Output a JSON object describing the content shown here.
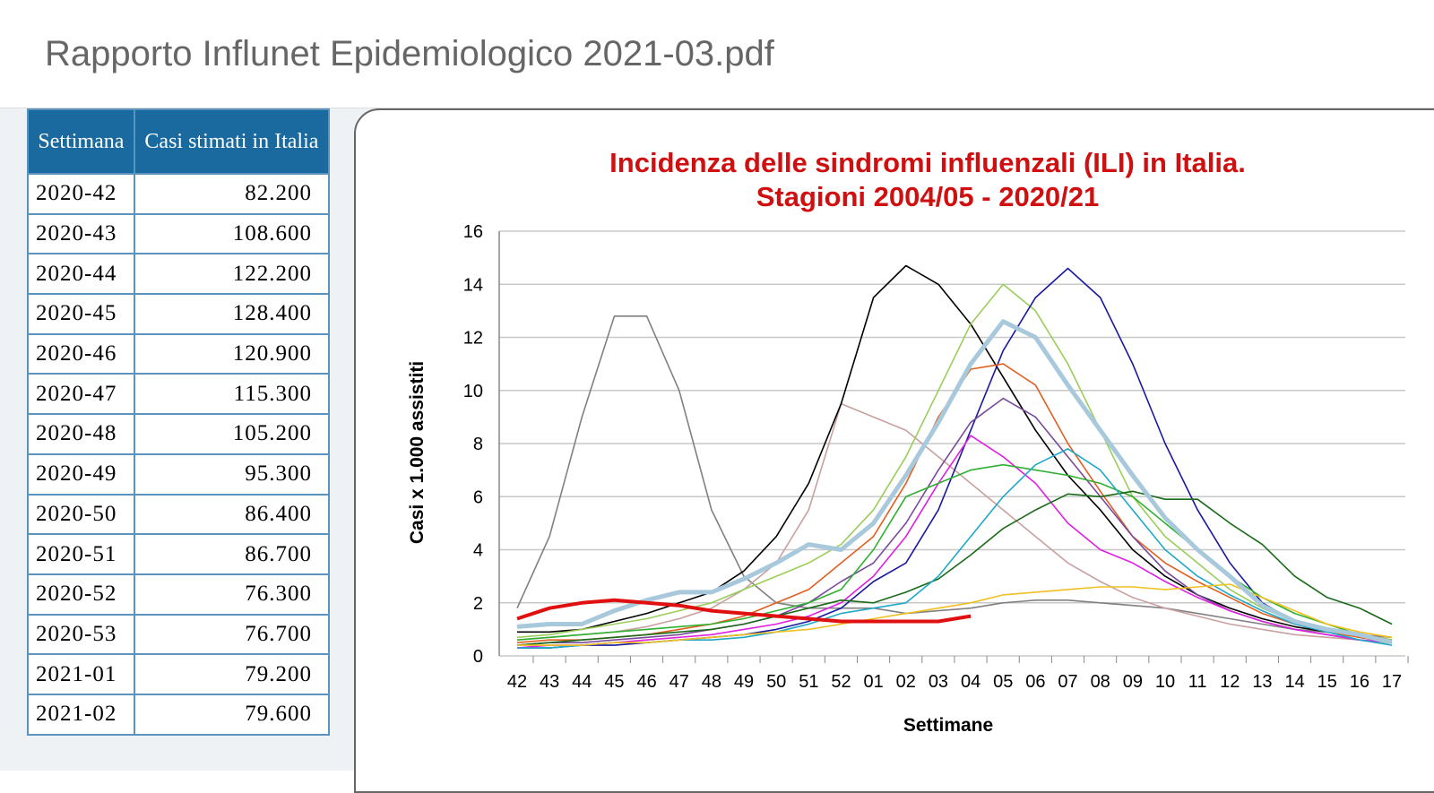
{
  "header": {
    "title": "Rapporto Influnet Epidemiologico 2021-03.pdf"
  },
  "table": {
    "columns": [
      "Settimana",
      "Casi stimati in Italia"
    ],
    "rows": [
      [
        "2020-42",
        "82.200"
      ],
      [
        "2020-43",
        "108.600"
      ],
      [
        "2020-44",
        "122.200"
      ],
      [
        "2020-45",
        "128.400"
      ],
      [
        "2020-46",
        "120.900"
      ],
      [
        "2020-47",
        "115.300"
      ],
      [
        "2020-48",
        "105.200"
      ],
      [
        "2020-49",
        "95.300"
      ],
      [
        "2020-50",
        "86.400"
      ],
      [
        "2020-51",
        "86.700"
      ],
      [
        "2020-52",
        "76.300"
      ],
      [
        "2020-53",
        "76.700"
      ],
      [
        "2021-01",
        "79.200"
      ],
      [
        "2021-02",
        "79.600"
      ]
    ]
  },
  "chart_data": {
    "type": "line",
    "title": "Incidenza delle sindromi influenzali (ILI) in Italia.",
    "subtitle": "Stagioni 2004/05 - 2020/21",
    "y_label": "Casi x 1.000 assistiti",
    "x_label": "Settimane",
    "categories": [
      "42",
      "43",
      "44",
      "45",
      "46",
      "47",
      "48",
      "49",
      "50",
      "51",
      "52",
      "01",
      "02",
      "03",
      "04",
      "05",
      "06",
      "07",
      "08",
      "09",
      "10",
      "11",
      "12",
      "13",
      "14",
      "15",
      "16",
      "17"
    ],
    "ylim": [
      0,
      16
    ],
    "yticks": [
      0,
      2,
      4,
      6,
      8,
      10,
      12,
      14,
      16
    ],
    "grid": true,
    "series": [
      {
        "color": "#808080",
        "values": [
          1.8,
          4.5,
          9,
          12.8,
          12.8,
          10,
          5.5,
          3,
          2,
          1.8,
          1.8,
          1.8,
          1.6,
          1.7,
          1.8,
          2,
          2.1,
          2.1,
          2.0,
          1.9,
          1.8,
          1.6,
          1.4,
          1.2,
          1.0,
          0.9,
          0.8,
          0.7
        ]
      },
      {
        "color": "#c9a0a0",
        "values": [
          0.6,
          0.7,
          0.8,
          0.9,
          1.1,
          1.4,
          1.8,
          2.5,
          3.5,
          5.5,
          9.5,
          9,
          8.5,
          7.5,
          6.5,
          5.5,
          4.5,
          3.5,
          2.8,
          2.2,
          1.8,
          1.5,
          1.2,
          1,
          0.8,
          0.7,
          0.6,
          0.5
        ]
      },
      {
        "color": "#000000",
        "values": [
          0.9,
          0.9,
          1,
          1.3,
          1.6,
          2,
          2.4,
          3.2,
          4.5,
          6.5,
          9.5,
          13.5,
          14.7,
          14,
          12.5,
          10.5,
          8.5,
          6.8,
          5.5,
          4,
          3,
          2.3,
          1.8,
          1.4,
          1.1,
          0.9,
          0.8,
          0.6
        ]
      },
      {
        "color": "#9acd5a",
        "values": [
          0.7,
          0.8,
          1,
          1.2,
          1.4,
          1.7,
          2,
          2.5,
          3,
          3.5,
          4.2,
          5.5,
          7.5,
          10,
          12.5,
          14,
          13,
          11,
          8.5,
          6,
          4.5,
          3.5,
          2.5,
          1.8,
          1.3,
          1,
          0.8,
          0.6
        ]
      },
      {
        "color": "#1a1aa0",
        "values": [
          0.3,
          0.3,
          0.4,
          0.4,
          0.5,
          0.6,
          0.7,
          0.8,
          1,
          1.3,
          1.8,
          2.8,
          3.5,
          5.5,
          8.5,
          11.5,
          13.5,
          14.6,
          13.5,
          11,
          8,
          5.5,
          3.5,
          2,
          1.3,
          1,
          0.7,
          0.5
        ]
      },
      {
        "color": "#e06020",
        "values": [
          0.5,
          0.6,
          0.6,
          0.7,
          0.8,
          1,
          1.2,
          1.5,
          2,
          2.5,
          3.5,
          4.5,
          6.5,
          9,
          10.8,
          11,
          10.2,
          8,
          6.2,
          4.5,
          3.5,
          2.8,
          2.2,
          1.6,
          1.2,
          0.9,
          0.7,
          0.5
        ]
      },
      {
        "color": "#7a4a9a",
        "values": [
          0.4,
          0.5,
          0.5,
          0.6,
          0.7,
          0.8,
          1,
          1.2,
          1.5,
          2,
          2.8,
          3.5,
          5,
          7,
          8.8,
          9.7,
          9,
          7.5,
          6,
          4.5,
          3.2,
          2.3,
          1.7,
          1.3,
          1,
          0.8,
          0.6,
          0.5
        ]
      },
      {
        "color": "#e020e0",
        "values": [
          0.3,
          0.4,
          0.4,
          0.5,
          0.6,
          0.7,
          0.8,
          1,
          1.2,
          1.5,
          2,
          3,
          4.5,
          6.5,
          8.3,
          7.5,
          6.5,
          5,
          4,
          3.5,
          2.8,
          2.2,
          1.7,
          1.3,
          1,
          0.8,
          0.6,
          0.5
        ]
      },
      {
        "color": "#30b030",
        "values": [
          0.6,
          0.7,
          0.8,
          0.9,
          1,
          1.1,
          1.2,
          1.4,
          1.7,
          2,
          2.5,
          4,
          6,
          6.5,
          7,
          7.2,
          7,
          6.8,
          6.5,
          6,
          5,
          4,
          3,
          2.2,
          1.6,
          1.2,
          0.8,
          0.4
        ]
      },
      {
        "color": "#1a6a1a",
        "values": [
          0.4,
          0.5,
          0.6,
          0.7,
          0.8,
          0.9,
          1,
          1.2,
          1.5,
          1.8,
          2.1,
          2,
          2.4,
          2.9,
          3.8,
          4.8,
          5.5,
          6.1,
          6,
          6.2,
          5.9,
          5.9,
          5,
          4.2,
          3,
          2.2,
          1.8,
          1.2
        ]
      },
      {
        "color": "#20a8c8",
        "values": [
          0.3,
          0.3,
          0.4,
          0.5,
          0.5,
          0.6,
          0.6,
          0.7,
          0.9,
          1.2,
          1.6,
          1.8,
          2,
          3,
          4.5,
          6,
          7.2,
          7.8,
          7,
          5.5,
          4,
          3,
          2.3,
          1.7,
          1.2,
          0.9,
          0.6,
          0.4
        ]
      },
      {
        "color": "#f0c020",
        "values": [
          0.4,
          0.4,
          0.4,
          0.5,
          0.5,
          0.6,
          0.7,
          0.8,
          0.9,
          1,
          1.2,
          1.4,
          1.6,
          1.8,
          2,
          2.3,
          2.4,
          2.5,
          2.6,
          2.6,
          2.5,
          2.6,
          2.7,
          2.2,
          1.7,
          1.2,
          0.9,
          0.7
        ]
      },
      {
        "color": "#a8c8dc",
        "values": [
          1.1,
          1.2,
          1.2,
          1.7,
          2.1,
          2.4,
          2.4,
          2.9,
          3.5,
          4.2,
          4,
          5,
          6.8,
          8.8,
          11,
          12.6,
          12,
          10.2,
          8.5,
          6.8,
          5.2,
          4,
          3,
          1.9,
          1.3,
          1,
          0.8,
          0.5
        ]
      },
      {
        "color": "#e01010",
        "values": [
          1.4,
          1.8,
          2,
          2.1,
          2,
          1.9,
          1.7,
          1.6,
          1.5,
          1.4,
          1.3,
          1.3,
          1.3,
          1.3,
          1.5,
          null,
          null,
          null,
          null,
          null,
          null,
          null,
          null,
          null,
          null,
          null,
          null,
          null
        ]
      }
    ]
  }
}
